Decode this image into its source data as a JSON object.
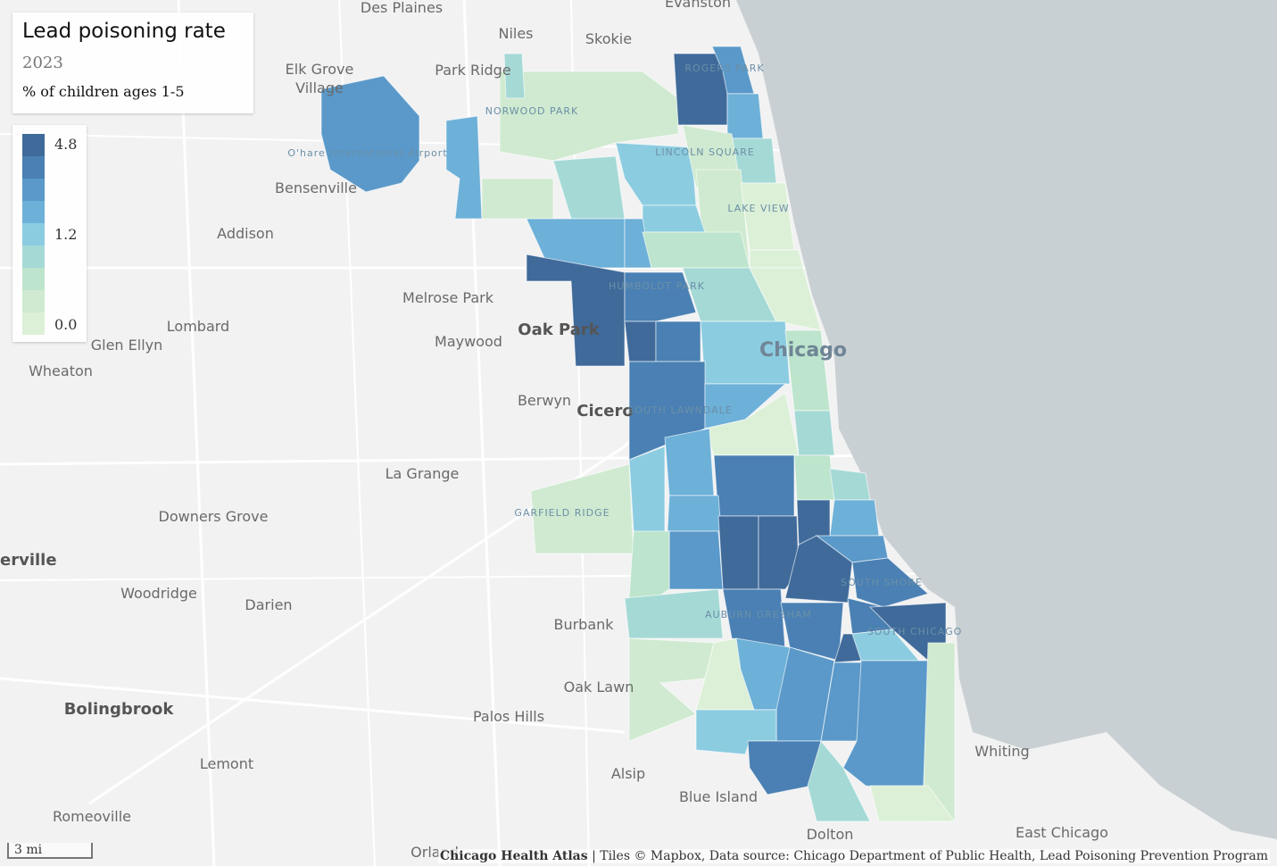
{
  "header": {
    "title": "Lead poisoning rate",
    "year": "2023",
    "subtitle": "% of children ages 1-5"
  },
  "legend": {
    "colors": [
      "#3f6a9a",
      "#4a80b3",
      "#5a99c9",
      "#6db0d8",
      "#8ccce0",
      "#a5d9d6",
      "#bde4cc",
      "#cfead0",
      "#dcf0d8"
    ],
    "ticks": [
      4.8,
      1.2,
      {
        "value": 0,
        "label": "0.0"
      }
    ]
  },
  "map": {
    "labels": [
      "Des Plaines",
      "Evanston",
      "Niles",
      "Skokie",
      "Elk Grove",
      "Village",
      "Park Ridge",
      "ROGERS PARK",
      "NORWOOD PARK",
      "O'hare International Airport",
      "Bensenville",
      "LINCOLN SQUARE",
      "LAKE VIEW",
      "Addison",
      "Melrose Park",
      "HUMBOLDT PARK",
      "Oak Park",
      "Maywood",
      "Lombard",
      "Glen Ellyn",
      "Wheaton",
      "Chicago",
      "Berwyn",
      "Cicero",
      "SOUTH LAWNDALE",
      "La Grange",
      "Downers Grove",
      "GARFIELD RIDGE",
      "erville",
      "Woodridge",
      "Darien",
      "SOUTH SHORE",
      "Burbank",
      "AUBURN GRESHAM",
      "SOUTH CHICAGO",
      "Oak Lawn",
      "Bolingbrook",
      "Palos Hills",
      "Whiting",
      "Lemont",
      "Alsip",
      "Blue Island",
      "Romeoville",
      "Dolton",
      "East Chicago",
      "Orland"
    ],
    "scale": "3 mi"
  },
  "footer": {
    "source": "Chicago Health Atlas",
    "credits": " | Tiles © Mapbox, Data source: Chicago Department of Public Health, Lead Poisoning Prevention Program"
  }
}
